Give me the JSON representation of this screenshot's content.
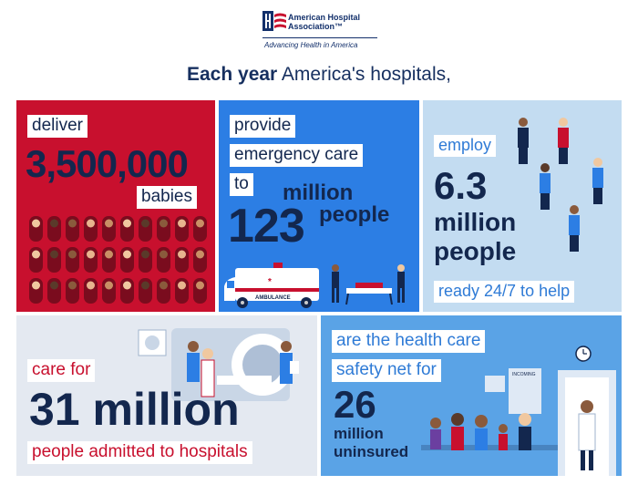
{
  "header": {
    "org_name_line1": "American Hospital",
    "org_name_line2": "Association™",
    "tagline": "Advancing Health in America",
    "headline_bold": "Each year",
    "headline_rest": " America's hospitals,"
  },
  "panels": {
    "babies": {
      "verb": "deliver",
      "number": "3,500,000",
      "noun": "babies",
      "background": "#c8102e"
    },
    "emergency": {
      "line1": "provide",
      "line2": "emergency care",
      "line3": "to",
      "number": "123",
      "unit_line1": "million",
      "unit_line2": "people",
      "ambulance_label": "AMBULANCE",
      "background": "#2c7ee4"
    },
    "employ": {
      "verb": "employ",
      "number": "6.3",
      "unit_line1": "million",
      "unit_line2": "people",
      "footer": "ready 24/7 to help",
      "background": "#c3dcf1"
    },
    "admitted": {
      "verb": "care for",
      "number": "31 million",
      "footer": "people admitted to hospitals",
      "background": "#e4e9f1"
    },
    "safety_net": {
      "line1": "are the health care",
      "line2": "safety net for",
      "number": "26",
      "unit_line1": "million",
      "unit_line2": "uninsured",
      "sign_label": "INCOMING",
      "background": "#5aa3e6"
    }
  },
  "colors": {
    "navy": "#13274e",
    "red": "#c8102e",
    "blue": "#2c7ee4",
    "light_blue": "#c3dcf1"
  }
}
